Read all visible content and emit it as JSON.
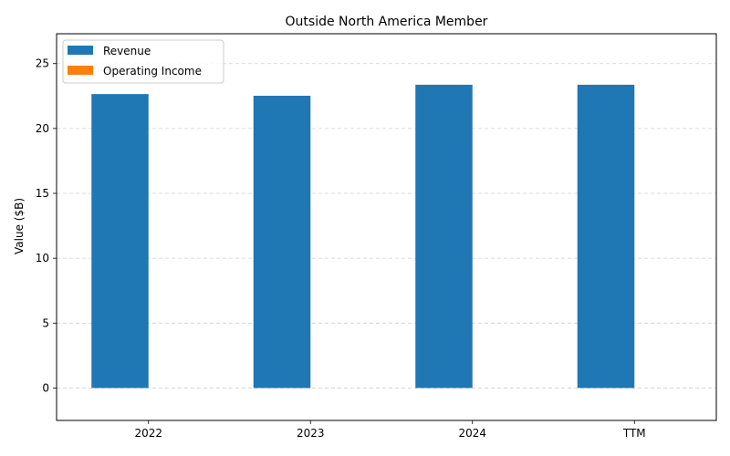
{
  "chart_data": {
    "type": "bar",
    "title": "Outside North America Member",
    "xlabel": "",
    "ylabel": "Value ($B)",
    "categories": [
      "2022",
      "2023",
      "2024",
      "TTM"
    ],
    "series": [
      {
        "name": "Revenue",
        "values": [
          22.65,
          22.52,
          23.37,
          23.37
        ],
        "color": "#1f77b4"
      },
      {
        "name": "Operating Income",
        "values": [
          0,
          0,
          0,
          0
        ],
        "color": "#ff7f0e"
      }
    ],
    "ylim": [
      -2.5,
      27.3
    ],
    "yticks": [
      0,
      5,
      10,
      15,
      20,
      25
    ],
    "grid": "y-dashed",
    "legend_position": "top-left"
  }
}
